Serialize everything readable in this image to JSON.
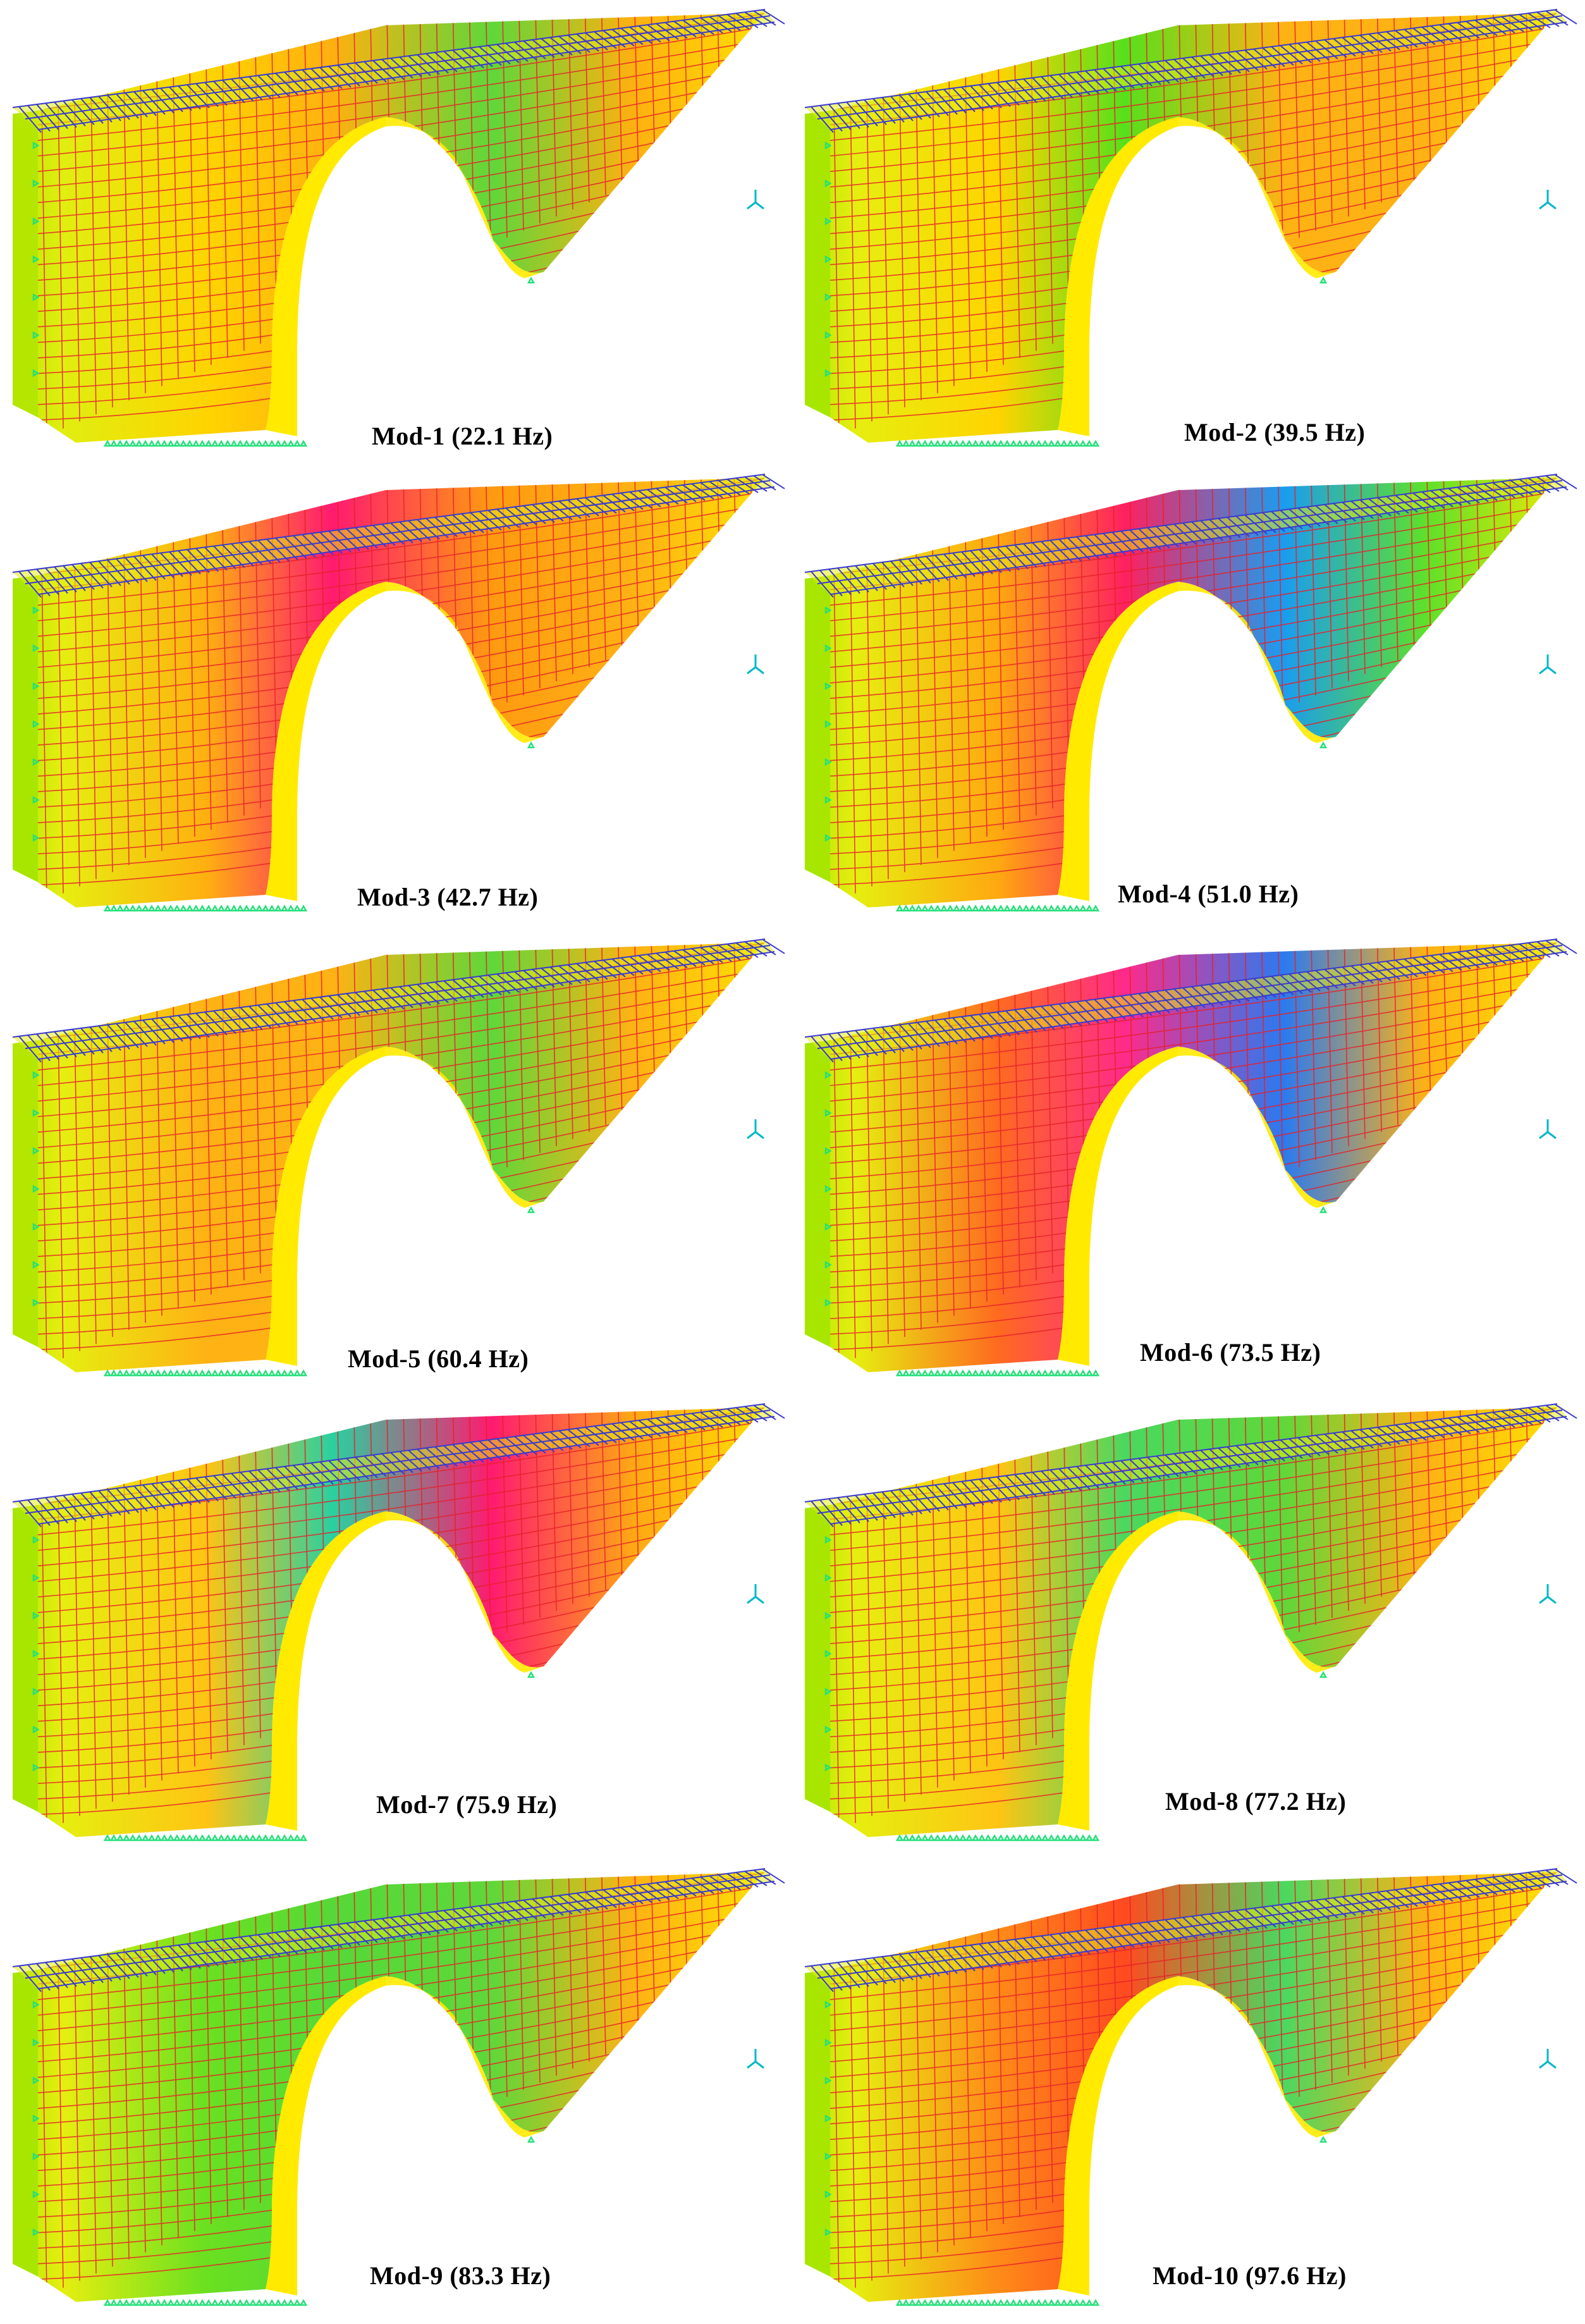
{
  "figure": {
    "modes": [
      {
        "label": "Mod-1 (22.1 Hz)",
        "colors": [
          "#b4e600",
          "#e0ee10",
          "#ffd400",
          "#ffb010",
          "#5fd73a",
          "#ffb010",
          "#ffea00"
        ]
      },
      {
        "label": "Mod-2 (39.5 Hz)",
        "colors": [
          "#a8e600",
          "#e6ee10",
          "#ffd400",
          "#56e01c",
          "#ffb214",
          "#ffb214",
          "#ffea00"
        ]
      },
      {
        "label": "Mod-3 (42.7 Hz)",
        "colors": [
          "#a8e600",
          "#e6ee10",
          "#ffb010",
          "#ff1a70",
          "#ff9a10",
          "#ffb214",
          "#ffea00"
        ]
      },
      {
        "label": "Mod-4 (51.0 Hz)",
        "colors": [
          "#a8e600",
          "#e6ee10",
          "#ffa810",
          "#ff2060",
          "#1a9cf0",
          "#5fe02a",
          "#ffea00"
        ]
      },
      {
        "label": "Mod-5 (60.4 Hz)",
        "colors": [
          "#b4e600",
          "#e6ee10",
          "#ffb214",
          "#ffb214",
          "#5fd73a",
          "#ffb214",
          "#ffea00"
        ]
      },
      {
        "label": "Mod-6 (73.5 Hz)",
        "colors": [
          "#a8e600",
          "#e6ee10",
          "#ff6a20",
          "#ff2a8a",
          "#2a7af0",
          "#ffb214",
          "#ffea00"
        ]
      },
      {
        "label": "Mod-7 (75.9 Hz)",
        "colors": [
          "#a8e600",
          "#e6ee10",
          "#ffc414",
          "#2ad0a0",
          "#ff1a70",
          "#ffa814",
          "#ffea00"
        ]
      },
      {
        "label": "Mod-8 (77.2 Hz)",
        "colors": [
          "#a8e600",
          "#e6ee10",
          "#ffc414",
          "#4ad860",
          "#5fd73a",
          "#ffb214",
          "#ffea00"
        ]
      },
      {
        "label": "Mod-9 (83.3 Hz)",
        "colors": [
          "#a8e600",
          "#e6ee10",
          "#6ae020",
          "#56d838",
          "#5fd73a",
          "#ffb214",
          "#ffea00"
        ]
      },
      {
        "label": "Mod-10 (97.6 Hz)",
        "colors": [
          "#a8e600",
          "#e6ee10",
          "#ff8a18",
          "#ff4a20",
          "#4ad860",
          "#ffb214",
          "#ffea00"
        ]
      }
    ],
    "mesh_color": "#e6202a",
    "deck_color": "#3a3ad0",
    "support_color": "#26e07a",
    "axis_color": "#00b8c8"
  }
}
